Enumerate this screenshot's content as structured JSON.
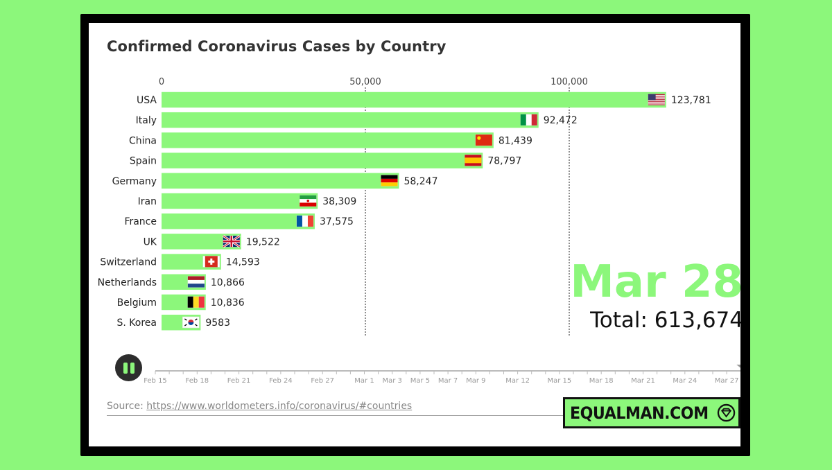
{
  "title": "Confirmed Coronavirus Cases by Country",
  "current_date": "Mar 28",
  "total_label": "Total: 613,674",
  "source": {
    "prefix": "Source: ",
    "url_text": "https://www.worldometers.info/coronavirus/#countries"
  },
  "brand": {
    "name": "EQUALMAN.COM",
    "logo_icon": "diamond-logo-icon"
  },
  "controls": {
    "play_state_icon": "pause-icon"
  },
  "colors": {
    "bar": "#8cf77b",
    "background": "#8cf77b",
    "frame": "#000000"
  },
  "timeline": {
    "ticks": [
      "Feb 15",
      "Feb 18",
      "Feb 21",
      "Feb 24",
      "Feb 27",
      "Mar 1",
      "Mar 3",
      "Mar 5",
      "Mar 7",
      "Mar 9",
      "Mar 12",
      "Mar 15",
      "Mar 18",
      "Mar 21",
      "Mar 24",
      "Mar 27"
    ],
    "tick_days": [
      0,
      3,
      6,
      9,
      12,
      15,
      17,
      19,
      21,
      23,
      26,
      29,
      32,
      35,
      38,
      41
    ],
    "current_day": 42
  },
  "chart_data": {
    "type": "bar",
    "orientation": "horizontal",
    "title": "Confirmed Coronavirus Cases by Country",
    "categories": [
      "USA",
      "Italy",
      "China",
      "Spain",
      "Germany",
      "Iran",
      "France",
      "UK",
      "Switzerland",
      "Netherlands",
      "Belgium",
      "S. Korea"
    ],
    "values": [
      123781,
      92472,
      81439,
      78797,
      58247,
      38309,
      37575,
      19522,
      14593,
      10866,
      10836,
      9583
    ],
    "value_labels": [
      "123,781",
      "92,472",
      "81,439",
      "78,797",
      "58,247",
      "38,309",
      "37,575",
      "19,522",
      "14,593",
      "10,866",
      "10,836",
      "9583"
    ],
    "flag_icons": [
      "us-flag-icon",
      "italy-flag-icon",
      "china-flag-icon",
      "spain-flag-icon",
      "germany-flag-icon",
      "iran-flag-icon",
      "france-flag-icon",
      "uk-flag-icon",
      "switzerland-flag-icon",
      "netherlands-flag-icon",
      "belgium-flag-icon",
      "south-korea-flag-icon"
    ],
    "x_ticks": [
      0,
      50000,
      100000
    ],
    "x_tick_labels": [
      "0",
      "50,000",
      "100,000"
    ],
    "xlim": [
      0,
      130000
    ],
    "grid": true,
    "axis_position": "top"
  }
}
